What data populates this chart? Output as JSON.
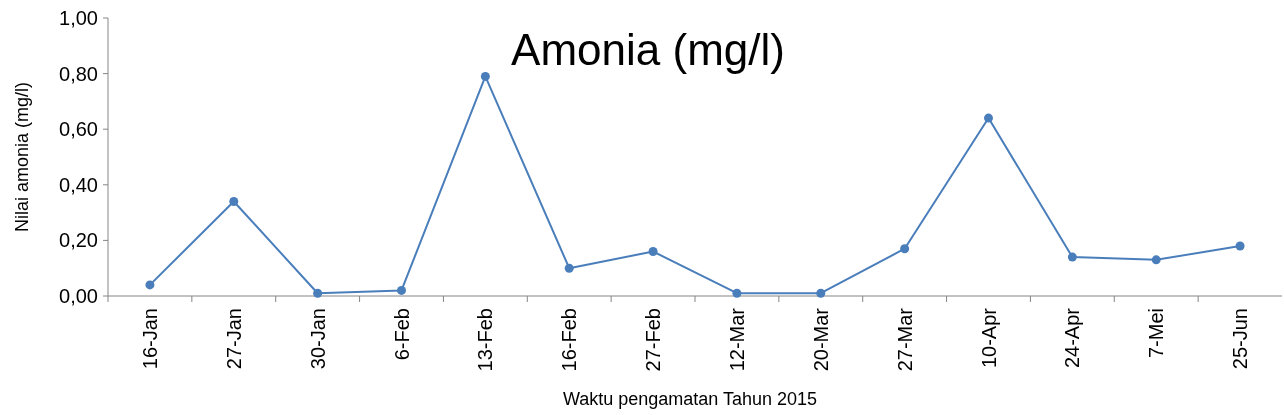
{
  "chart_data": {
    "type": "line",
    "title": "Amonia (mg/l)",
    "xlabel": "Waktu pengamatan Tahun 2015",
    "ylabel": "Nilai amonia (mg/l)",
    "categories": [
      "16-Jan",
      "27-Jan",
      "30-Jan",
      "6-Feb",
      "13-Feb",
      "16-Feb",
      "27-Feb",
      "12-Mar",
      "20-Mar",
      "27-Mar",
      "10-Apr",
      "24-Apr",
      "7-Mei",
      "25-Jun"
    ],
    "series": [
      {
        "color": "#4a7ebb",
        "values": [
          0.04,
          0.34,
          0.01,
          0.02,
          0.79,
          0.1,
          0.16,
          0.01,
          0.01,
          0.17,
          0.64,
          0.14,
          0.13,
          0.18
        ]
      }
    ],
    "ylim": [
      0,
      1
    ],
    "yticks": [
      {
        "value": 0,
        "label": "0,00"
      },
      {
        "value": 0.2,
        "label": "0,20"
      },
      {
        "value": 0.4,
        "label": "0,40"
      },
      {
        "value": 0.6,
        "label": "0,60"
      },
      {
        "value": 0.8,
        "label": "0,80"
      },
      {
        "value": 1,
        "label": "1,00"
      }
    ],
    "grid": false,
    "marker": "circle",
    "line_style": "solid"
  }
}
